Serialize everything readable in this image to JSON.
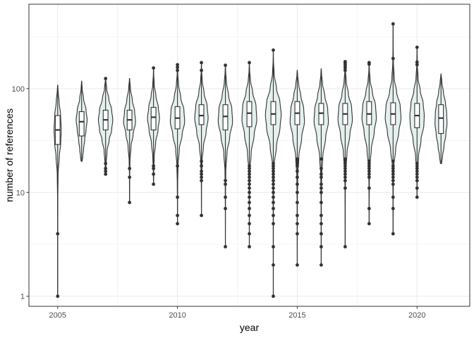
{
  "chart_data": {
    "type": "violin",
    "xlabel": "year",
    "ylabel": "number of references",
    "y_scale": "log10",
    "ylim": [
      0.8,
      650
    ],
    "xlim": [
      2003.8,
      2022.2
    ],
    "grid": true,
    "x_ticks": [
      {
        "value": 2005,
        "label": "2005"
      },
      {
        "value": 2010,
        "label": "2010"
      },
      {
        "value": 2015,
        "label": "2015"
      },
      {
        "value": 2020,
        "label": "2020"
      }
    ],
    "y_ticks": [
      {
        "value": 1,
        "label": "1"
      },
      {
        "value": 10,
        "label": "10"
      },
      {
        "value": 100,
        "label": "100"
      }
    ],
    "colors": {
      "violin_fill": "#e3f0ee",
      "outline": "#333333",
      "point": "#333333",
      "box_fill": "#ffffff",
      "panel_border": "#333333",
      "grid": "#ebebeb"
    },
    "series": [
      {
        "year": 2005,
        "min": 1,
        "q1": 29,
        "median": 40,
        "q3": 55,
        "max": 108,
        "max_width": 0.3,
        "profile": [
          [
            1,
            0.005
          ],
          [
            2,
            0.008
          ],
          [
            4,
            0.012
          ],
          [
            8,
            0.03
          ],
          [
            15,
            0.12
          ],
          [
            22,
            0.45
          ],
          [
            30,
            0.85
          ],
          [
            40,
            1
          ],
          [
            55,
            0.82
          ],
          [
            75,
            0.4
          ],
          [
            95,
            0.12
          ],
          [
            108,
            0.02
          ]
        ],
        "outliers": [
          1,
          4
        ]
      },
      {
        "year": 2006,
        "min": 20,
        "q1": 35,
        "median": 48,
        "q3": 60,
        "max": 118,
        "max_width": 0.46,
        "profile": [
          [
            20,
            0.1
          ],
          [
            22,
            0.2
          ],
          [
            26,
            0.35
          ],
          [
            32,
            0.55
          ],
          [
            40,
            0.8
          ],
          [
            50,
            1
          ],
          [
            62,
            0.8
          ],
          [
            80,
            0.35
          ],
          [
            100,
            0.1
          ],
          [
            118,
            0.02
          ]
        ],
        "outliers": []
      },
      {
        "year": 2007,
        "min": 15,
        "q1": 40,
        "median": 50,
        "q3": 62,
        "max": 125,
        "max_width": 0.6,
        "profile": [
          [
            15,
            0.02
          ],
          [
            18,
            0.06
          ],
          [
            25,
            0.2
          ],
          [
            32,
            0.5
          ],
          [
            40,
            0.85
          ],
          [
            50,
            1
          ],
          [
            62,
            0.85
          ],
          [
            80,
            0.45
          ],
          [
            100,
            0.15
          ],
          [
            125,
            0.02
          ]
        ],
        "outliers": [
          15,
          16,
          17,
          19,
          125
        ]
      },
      {
        "year": 2008,
        "min": 8,
        "q1": 40,
        "median": 50,
        "q3": 62,
        "max": 125,
        "max_width": 0.5,
        "profile": [
          [
            8,
            0.005
          ],
          [
            14,
            0.02
          ],
          [
            20,
            0.07
          ],
          [
            28,
            0.25
          ],
          [
            36,
            0.6
          ],
          [
            48,
            1
          ],
          [
            60,
            0.85
          ],
          [
            78,
            0.45
          ],
          [
            100,
            0.15
          ],
          [
            125,
            0.02
          ]
        ],
        "outliers": [
          8,
          14,
          17
        ]
      },
      {
        "year": 2009,
        "min": 12,
        "q1": 40,
        "median": 53,
        "q3": 66,
        "max": 158,
        "max_width": 0.5,
        "profile": [
          [
            12,
            0.01
          ],
          [
            16,
            0.04
          ],
          [
            22,
            0.12
          ],
          [
            30,
            0.35
          ],
          [
            40,
            0.75
          ],
          [
            52,
            1
          ],
          [
            66,
            0.8
          ],
          [
            85,
            0.4
          ],
          [
            110,
            0.12
          ],
          [
            140,
            0.03
          ],
          [
            158,
            0.005
          ]
        ],
        "outliers": [
          12,
          15,
          17,
          18,
          158
        ]
      },
      {
        "year": 2010,
        "min": 5,
        "q1": 41,
        "median": 52,
        "q3": 67,
        "max": 170,
        "max_width": 0.6,
        "profile": [
          [
            5,
            0.004
          ],
          [
            8,
            0.01
          ],
          [
            12,
            0.03
          ],
          [
            18,
            0.08
          ],
          [
            26,
            0.25
          ],
          [
            36,
            0.65
          ],
          [
            48,
            1
          ],
          [
            62,
            0.9
          ],
          [
            82,
            0.45
          ],
          [
            110,
            0.15
          ],
          [
            140,
            0.04
          ],
          [
            170,
            0.005
          ]
        ],
        "outliers": [
          5,
          6,
          9,
          18,
          150,
          160,
          170
        ]
      },
      {
        "year": 2011,
        "min": 6,
        "q1": 45,
        "median": 55,
        "q3": 70,
        "max": 178,
        "max_width": 0.56,
        "profile": [
          [
            6,
            0.004
          ],
          [
            10,
            0.01
          ],
          [
            14,
            0.03
          ],
          [
            20,
            0.1
          ],
          [
            28,
            0.3
          ],
          [
            38,
            0.7
          ],
          [
            52,
            1
          ],
          [
            68,
            0.85
          ],
          [
            90,
            0.4
          ],
          [
            120,
            0.12
          ],
          [
            150,
            0.03
          ],
          [
            178,
            0.005
          ]
        ],
        "outliers": [
          6,
          13,
          14,
          15,
          16,
          18,
          20,
          150,
          178
        ]
      },
      {
        "year": 2012,
        "min": 3,
        "q1": 40,
        "median": 54,
        "q3": 70,
        "max": 168,
        "max_width": 0.6,
        "profile": [
          [
            3,
            0.003
          ],
          [
            6,
            0.008
          ],
          [
            10,
            0.02
          ],
          [
            16,
            0.06
          ],
          [
            24,
            0.22
          ],
          [
            34,
            0.6
          ],
          [
            48,
            1
          ],
          [
            64,
            0.9
          ],
          [
            85,
            0.45
          ],
          [
            115,
            0.15
          ],
          [
            145,
            0.04
          ],
          [
            168,
            0.005
          ]
        ],
        "outliers": [
          3,
          7,
          9,
          12,
          13,
          168
        ]
      },
      {
        "year": 2013,
        "min": 3,
        "q1": 43,
        "median": 58,
        "q3": 75,
        "max": 178,
        "max_width": 0.62,
        "profile": [
          [
            3,
            0.003
          ],
          [
            6,
            0.008
          ],
          [
            10,
            0.02
          ],
          [
            16,
            0.07
          ],
          [
            24,
            0.25
          ],
          [
            36,
            0.65
          ],
          [
            50,
            1
          ],
          [
            68,
            0.9
          ],
          [
            92,
            0.45
          ],
          [
            120,
            0.15
          ],
          [
            150,
            0.04
          ],
          [
            178,
            0.005
          ]
        ],
        "outliers": [
          3,
          4,
          5,
          6,
          7,
          8,
          9,
          10,
          11,
          12,
          13,
          14,
          15,
          16,
          17,
          18,
          178
        ]
      },
      {
        "year": 2014,
        "min": 1,
        "q1": 45,
        "median": 57,
        "q3": 75,
        "max": 235,
        "max_width": 0.66,
        "profile": [
          [
            1,
            0.002
          ],
          [
            2,
            0.004
          ],
          [
            5,
            0.01
          ],
          [
            10,
            0.03
          ],
          [
            18,
            0.1
          ],
          [
            28,
            0.4
          ],
          [
            42,
            0.85
          ],
          [
            56,
            1
          ],
          [
            74,
            0.85
          ],
          [
            100,
            0.4
          ],
          [
            140,
            0.1
          ],
          [
            190,
            0.02
          ],
          [
            235,
            0.003
          ]
        ],
        "outliers": [
          1,
          2,
          3,
          5,
          6,
          7,
          8,
          9,
          10,
          11,
          12,
          13,
          14,
          15,
          16,
          17,
          18,
          19,
          235
        ]
      },
      {
        "year": 2015,
        "min": 2,
        "q1": 45,
        "median": 58,
        "q3": 75,
        "max": 150,
        "max_width": 0.6,
        "profile": [
          [
            2,
            0.003
          ],
          [
            4,
            0.008
          ],
          [
            8,
            0.02
          ],
          [
            14,
            0.06
          ],
          [
            22,
            0.22
          ],
          [
            34,
            0.62
          ],
          [
            48,
            1
          ],
          [
            64,
            0.9
          ],
          [
            85,
            0.5
          ],
          [
            110,
            0.2
          ],
          [
            135,
            0.05
          ],
          [
            150,
            0.01
          ]
        ],
        "outliers": [
          2,
          4,
          5,
          6,
          8,
          10,
          12,
          14,
          16,
          18,
          19,
          20,
          21
        ]
      },
      {
        "year": 2016,
        "min": 2,
        "q1": 45,
        "median": 58,
        "q3": 72,
        "max": 155,
        "max_width": 0.6,
        "profile": [
          [
            2,
            0.003
          ],
          [
            4,
            0.008
          ],
          [
            8,
            0.02
          ],
          [
            14,
            0.06
          ],
          [
            22,
            0.22
          ],
          [
            34,
            0.62
          ],
          [
            48,
            1
          ],
          [
            64,
            0.9
          ],
          [
            85,
            0.5
          ],
          [
            112,
            0.18
          ],
          [
            138,
            0.05
          ],
          [
            155,
            0.01
          ]
        ],
        "outliers": [
          2,
          3,
          4,
          5,
          6,
          8,
          10,
          11,
          12,
          14,
          15,
          17,
          21
        ]
      },
      {
        "year": 2017,
        "min": 3,
        "q1": 45,
        "median": 57,
        "q3": 72,
        "max": 182,
        "max_width": 0.6,
        "profile": [
          [
            3,
            0.003
          ],
          [
            6,
            0.008
          ],
          [
            10,
            0.02
          ],
          [
            16,
            0.07
          ],
          [
            24,
            0.25
          ],
          [
            36,
            0.65
          ],
          [
            50,
            1
          ],
          [
            66,
            0.9
          ],
          [
            88,
            0.45
          ],
          [
            118,
            0.15
          ],
          [
            150,
            0.04
          ],
          [
            182,
            0.005
          ]
        ],
        "outliers": [
          3,
          11,
          13,
          14,
          15,
          16,
          17,
          18,
          19,
          20,
          21,
          150,
          158,
          165,
          172,
          178,
          182
        ]
      },
      {
        "year": 2018,
        "min": 5,
        "q1": 45,
        "median": 57,
        "q3": 75,
        "max": 178,
        "max_width": 0.6,
        "profile": [
          [
            5,
            0.004
          ],
          [
            8,
            0.01
          ],
          [
            12,
            0.03
          ],
          [
            18,
            0.1
          ],
          [
            26,
            0.3
          ],
          [
            38,
            0.7
          ],
          [
            52,
            1
          ],
          [
            68,
            0.9
          ],
          [
            92,
            0.45
          ],
          [
            120,
            0.15
          ],
          [
            150,
            0.04
          ],
          [
            178,
            0.005
          ]
        ],
        "outliers": [
          5,
          7,
          11,
          14,
          15,
          16,
          17,
          18,
          19,
          20,
          172,
          178
        ]
      },
      {
        "year": 2019,
        "min": 4,
        "q1": 45,
        "median": 57,
        "q3": 73,
        "max": 420,
        "max_width": 0.66,
        "profile": [
          [
            4,
            0.003
          ],
          [
            8,
            0.01
          ],
          [
            12,
            0.03
          ],
          [
            18,
            0.1
          ],
          [
            26,
            0.32
          ],
          [
            38,
            0.72
          ],
          [
            52,
            1
          ],
          [
            68,
            0.9
          ],
          [
            92,
            0.45
          ],
          [
            125,
            0.15
          ],
          [
            180,
            0.04
          ],
          [
            260,
            0.01
          ],
          [
            420,
            0.002
          ]
        ],
        "outliers": [
          4,
          7,
          9,
          12,
          13,
          14,
          15,
          16,
          17,
          18,
          20,
          195,
          420
        ]
      },
      {
        "year": 2020,
        "min": 9,
        "q1": 42,
        "median": 55,
        "q3": 72,
        "max": 250,
        "max_width": 0.6,
        "profile": [
          [
            9,
            0.005
          ],
          [
            12,
            0.02
          ],
          [
            16,
            0.06
          ],
          [
            22,
            0.2
          ],
          [
            32,
            0.55
          ],
          [
            45,
            0.95
          ],
          [
            55,
            1
          ],
          [
            72,
            0.85
          ],
          [
            95,
            0.45
          ],
          [
            125,
            0.15
          ],
          [
            170,
            0.04
          ],
          [
            250,
            0.005
          ]
        ],
        "outliers": [
          9,
          11,
          13,
          14,
          15,
          16,
          17,
          18,
          19,
          170,
          180,
          250
        ]
      },
      {
        "year": 2021,
        "min": 19,
        "q1": 37,
        "median": 52,
        "q3": 70,
        "max": 138,
        "max_width": 0.5,
        "profile": [
          [
            19,
            0.1
          ],
          [
            22,
            0.25
          ],
          [
            28,
            0.5
          ],
          [
            36,
            0.8
          ],
          [
            46,
            1
          ],
          [
            58,
            0.95
          ],
          [
            72,
            0.75
          ],
          [
            92,
            0.4
          ],
          [
            115,
            0.15
          ],
          [
            138,
            0.02
          ]
        ],
        "outliers": []
      }
    ]
  }
}
